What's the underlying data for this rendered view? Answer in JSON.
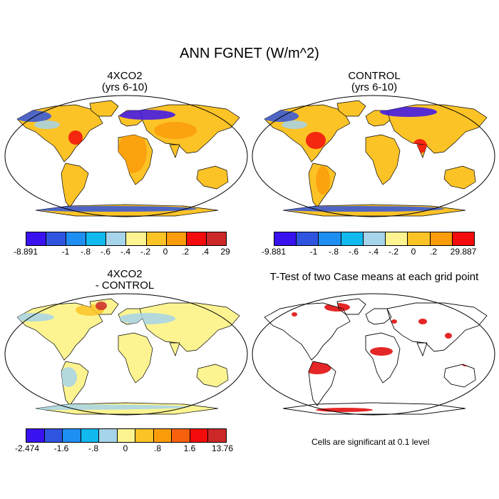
{
  "figure": {
    "title": "ANN FGNET (W/m^2)",
    "palette": [
      "#3a12f0",
      "#2f55e0",
      "#1f8ef2",
      "#11b9ee",
      "#a6d4ea",
      "#fdf491",
      "#fcc327",
      "#fb9c0a",
      "#f8600e",
      "#f20c0c",
      "#cd2828"
    ]
  },
  "panels": [
    {
      "id": "4xco2",
      "title_line1": "4XCO2",
      "title_line2": "(yrs 6-10)",
      "colorbar_labels": [
        "-8.891",
        "-1",
        "-.8",
        "-.6",
        "-.4",
        "-.2",
        "0",
        ".2",
        ".4",
        "29"
      ],
      "fill_palette": [
        "#3a12f0",
        "#2f55e0",
        "#1f8ef2",
        "#11b9ee",
        "#a6d4ea",
        "#fdf491",
        "#fcc327",
        "#fb9c0a",
        "#f20c0c",
        "#cd2828"
      ]
    },
    {
      "id": "control",
      "title_line1": "CONTROL",
      "title_line2": "(yrs 6-10)",
      "colorbar_labels": [
        "-9.881",
        "-1",
        "-.8",
        "-.6",
        "-.4",
        "-.2",
        "0",
        ".2",
        "29.887"
      ],
      "fill_palette": [
        "#3a12f0",
        "#2f55e0",
        "#1f8ef2",
        "#11b9ee",
        "#a6d4ea",
        "#fdf491",
        "#fcc327",
        "#fb9c0a",
        "#f20c0c",
        "#cd2828"
      ]
    },
    {
      "id": "diff",
      "title_line1": "4XCO2",
      "title_line2": "- CONTROL",
      "colorbar_labels": [
        "-2.474",
        "-1.6",
        "-.8",
        "0",
        ".8",
        "1.6",
        "13.76"
      ],
      "fill_palette": [
        "#3a12f0",
        "#2f55e0",
        "#1f8ef2",
        "#11b9ee",
        "#a6d4ea",
        "#fdf491",
        "#fcc327",
        "#fb9c0a",
        "#f8600e",
        "#f20c0c",
        "#cd2828"
      ]
    },
    {
      "id": "ttest",
      "title_line1": "T-Test of two Case means at each grid point",
      "note": "Cells are significant at 0.1 level",
      "significance_color": "#e00000"
    }
  ]
}
